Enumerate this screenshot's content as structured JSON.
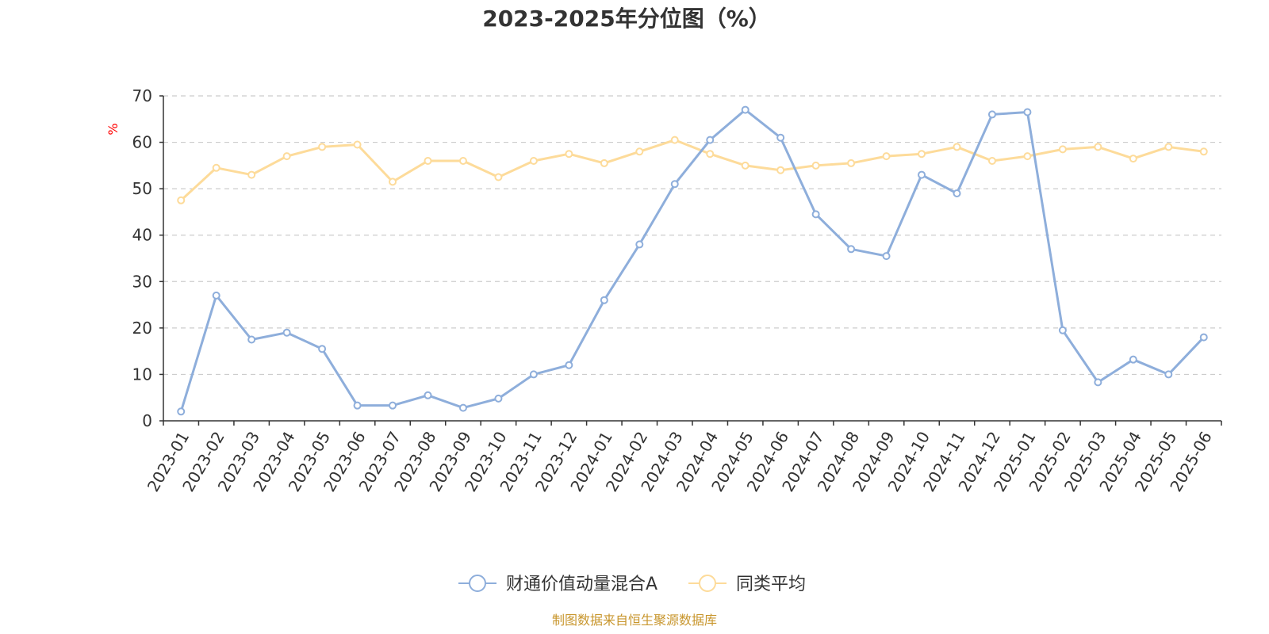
{
  "chart_data": {
    "type": "line",
    "title": "2023-2025年分位图（%）",
    "ylabel": "%",
    "xlabel": "",
    "ylim": [
      0,
      70
    ],
    "yticks": [
      0,
      10,
      20,
      30,
      40,
      50,
      60,
      70
    ],
    "grid": true,
    "legend_position": "bottom-center",
    "categories": [
      "2023-01",
      "2023-02",
      "2023-03",
      "2023-04",
      "2023-05",
      "2023-06",
      "2023-07",
      "2023-08",
      "2023-09",
      "2023-10",
      "2023-11",
      "2023-12",
      "2024-01",
      "2024-02",
      "2024-03",
      "2024-04",
      "2024-05",
      "2024-06",
      "2024-07",
      "2024-08",
      "2024-09",
      "2024-10",
      "2024-11",
      "2024-12",
      "2025-01",
      "2025-02",
      "2025-03",
      "2025-04",
      "2025-05",
      "2025-06"
    ],
    "series": [
      {
        "name": "财通价值动量混合A",
        "color": "#8eaedb",
        "values": [
          2,
          27,
          17.5,
          19,
          15.5,
          3.3,
          3.3,
          5.5,
          2.8,
          4.8,
          10,
          12,
          26,
          38,
          51,
          60.5,
          67,
          61,
          44.5,
          37,
          35.5,
          53,
          49,
          66,
          66.5,
          19.5,
          8.3,
          13.2,
          10,
          18
        ]
      },
      {
        "name": "同类平均",
        "color": "#fddb9a",
        "values": [
          47.5,
          54.5,
          53,
          57,
          59,
          59.5,
          51.5,
          56,
          56,
          52.5,
          56,
          57.5,
          55.5,
          58,
          60.5,
          57.5,
          55,
          54,
          55,
          55.5,
          57,
          57.5,
          59,
          56,
          57,
          58.5,
          59,
          56.5,
          59,
          58
        ]
      }
    ]
  },
  "colors": {
    "title": "#333333",
    "axis": "#333333",
    "grid": "#cccccc",
    "y_unit": "#ff0000",
    "source": "#c8962d"
  },
  "source_text": "制图数据来自恒生聚源数据库"
}
